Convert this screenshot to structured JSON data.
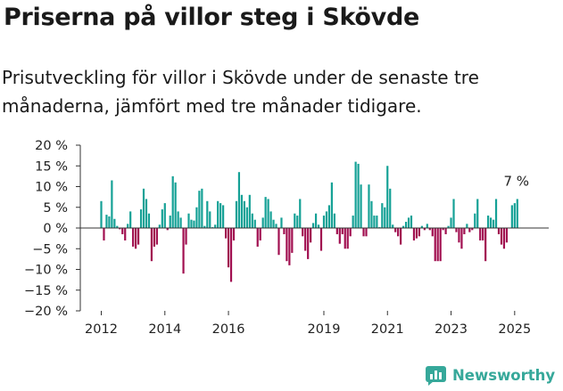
{
  "header": {
    "title": "Priserna på villor steg i Skövde",
    "subtitle": "Prisutveckling för villor i Skövde under de senaste tre månaderna, jämfört med tre månader tidigare."
  },
  "brand": {
    "name": "Newsworthy",
    "logo_icon": "newsworthy-chart-icon"
  },
  "colors": {
    "positive": "#15a196",
    "negative": "#a10f50",
    "axis": "#333333"
  },
  "chart_data": {
    "type": "bar",
    "title": "Priserna på villor steg i Skövde",
    "xlabel": "",
    "ylabel": "",
    "ylim": [
      -20,
      20
    ],
    "y_ticks": [
      20,
      15,
      10,
      5,
      0,
      -5,
      -10,
      -15,
      -20
    ],
    "y_tick_labels": [
      "20 %",
      "15 %",
      "10 %",
      "5 %",
      "0 %",
      "−5 %",
      "−10 %",
      "−15 %",
      "−20 %"
    ],
    "x_tick_labels": [
      "2012",
      "2014",
      "2016",
      "2019",
      "2021",
      "2023",
      "2025"
    ],
    "x_tick_positions": [
      2012,
      2014,
      2016,
      2019,
      2021,
      2023,
      2025
    ],
    "x_start": 2012,
    "months_per_bar": 1,
    "grid": false,
    "legend": "none",
    "last_value_label": "7 %",
    "values": [
      6.5,
      -3,
      3.2,
      2.8,
      11.5,
      2.2,
      0.5,
      -0.3,
      -1.5,
      -3,
      1,
      4,
      -4.5,
      -5,
      -4,
      4.5,
      9.5,
      7,
      3.5,
      -8,
      -4.5,
      -4,
      0.8,
      4.5,
      6,
      -0.5,
      3,
      12.5,
      11,
      4,
      2.5,
      -11,
      -4,
      3.5,
      2,
      1.8,
      5,
      9,
      9.5,
      0.5,
      6.5,
      4,
      0.2,
      0.8,
      6.5,
      6,
      5.5,
      -2.5,
      -9.5,
      -13,
      -3,
      6.5,
      13.5,
      8,
      6.5,
      5,
      8,
      3.5,
      2,
      -4.5,
      -3,
      2.5,
      7.5,
      7,
      4,
      2,
      1,
      -6.5,
      2.5,
      -1.5,
      -8,
      -9,
      -6,
      3.5,
      3,
      7,
      -2,
      -5.5,
      -7.5,
      -3.5,
      1.2,
      3.5,
      0.8,
      -5.5,
      3,
      4,
      5.5,
      11,
      3.5,
      -1.5,
      -3.8,
      -1.5,
      -5,
      -5,
      -2,
      3,
      16,
      15.5,
      10.5,
      -2,
      -2,
      10.5,
      6.5,
      3,
      3,
      0.2,
      6,
      5,
      15,
      9.5,
      0.8,
      -1,
      -2,
      -4,
      0.5,
      1.5,
      2.5,
      3,
      -3,
      -2.5,
      -2,
      0.5,
      -0.5,
      1,
      -0.5,
      -2,
      -8,
      -8,
      -8,
      -0.5,
      -1.5,
      0.5,
      2.5,
      7,
      -1,
      -3.5,
      -5,
      -1.5,
      1,
      -1,
      -0.5,
      3.5,
      7,
      -3,
      -3,
      -8,
      3,
      2.5,
      2,
      7,
      -1.5,
      -4,
      -5,
      -3.5,
      0,
      5.5,
      6,
      7
    ]
  }
}
